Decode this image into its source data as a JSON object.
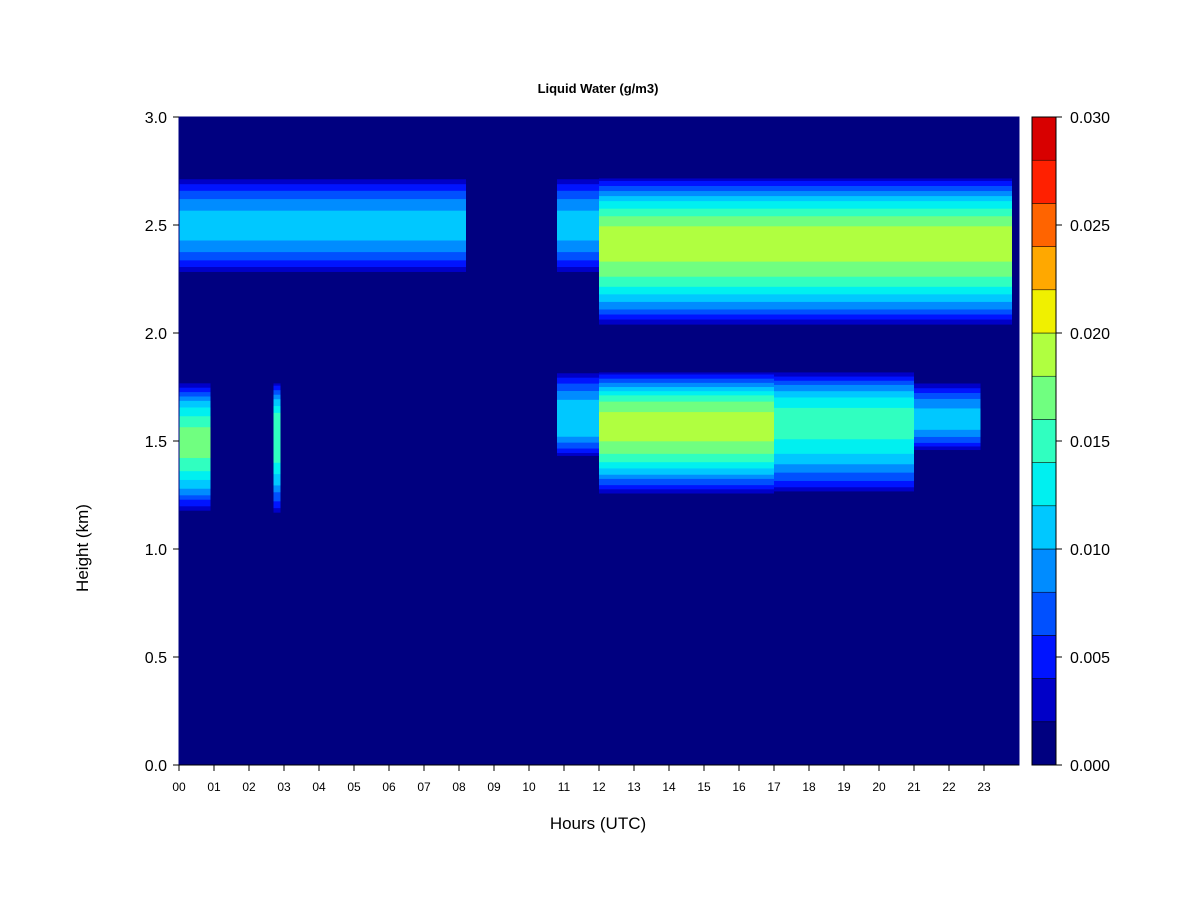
{
  "chart_data": {
    "type": "heatmap",
    "title": "Liquid Water (g/m3)",
    "xlabel": "Hours (UTC)",
    "ylabel": "Height (km)",
    "xlim": [
      0,
      24
    ],
    "ylim": [
      0.0,
      3.0
    ],
    "x_tick_labels": [
      "00",
      "01",
      "02",
      "03",
      "04",
      "05",
      "06",
      "07",
      "08",
      "09",
      "10",
      "11",
      "12",
      "13",
      "14",
      "15",
      "16",
      "17",
      "18",
      "19",
      "20",
      "21",
      "22",
      "23"
    ],
    "y_tick_labels": [
      "0.0",
      "0.5",
      "1.0",
      "1.5",
      "2.0",
      "2.5",
      "3.0"
    ],
    "colorbar": {
      "range": [
        0.0,
        0.03
      ],
      "tick_labels": [
        "0.000",
        "0.005",
        "0.010",
        "0.015",
        "0.020",
        "0.025",
        "0.030"
      ],
      "levels": [
        0.0,
        0.002,
        0.004,
        0.006,
        0.008,
        0.01,
        0.012,
        0.014,
        0.016,
        0.018,
        0.02,
        0.022,
        0.024,
        0.026,
        0.028,
        0.03
      ],
      "colors": [
        "#000080",
        "#0000C8",
        "#0014FF",
        "#0050FF",
        "#008CFF",
        "#00C8FF",
        "#00F0F0",
        "#30FFC0",
        "#70FF80",
        "#B0FF40",
        "#F0F000",
        "#FFA800",
        "#FF6400",
        "#FF2000",
        "#D80000",
        "#800000"
      ]
    },
    "cloud_layers": [
      {
        "name": "upper",
        "segments": [
          {
            "start": 0.0,
            "end": 8.2,
            "base": 2.27,
            "top": 2.73,
            "peak": 2.5,
            "max_value": 0.011
          },
          {
            "start": 10.8,
            "end": 12.0,
            "base": 2.27,
            "top": 2.73,
            "peak": 2.5,
            "max_value": 0.011
          },
          {
            "start": 12.0,
            "end": 23.8,
            "base": 2.03,
            "top": 2.73,
            "peak": 2.42,
            "max_value": 0.019
          }
        ]
      },
      {
        "name": "lower",
        "segments": [
          {
            "start": 0.0,
            "end": 0.9,
            "base": 1.17,
            "top": 1.78,
            "peak": 1.5,
            "max_value": 0.017
          },
          {
            "start": 2.7,
            "end": 2.9,
            "base": 1.15,
            "top": 1.78,
            "peak": 1.55,
            "max_value": 0.016
          },
          {
            "start": 10.8,
            "end": 12.0,
            "base": 1.42,
            "top": 1.83,
            "peak": 1.6,
            "max_value": 0.012
          },
          {
            "start": 12.0,
            "end": 17.0,
            "base": 1.25,
            "top": 1.83,
            "peak": 1.58,
            "max_value": 0.019
          },
          {
            "start": 17.0,
            "end": 21.0,
            "base": 1.25,
            "top": 1.83,
            "peak": 1.6,
            "max_value": 0.015
          },
          {
            "start": 21.0,
            "end": 22.9,
            "base": 1.45,
            "top": 1.78,
            "peak": 1.6,
            "max_value": 0.011
          }
        ]
      }
    ]
  }
}
